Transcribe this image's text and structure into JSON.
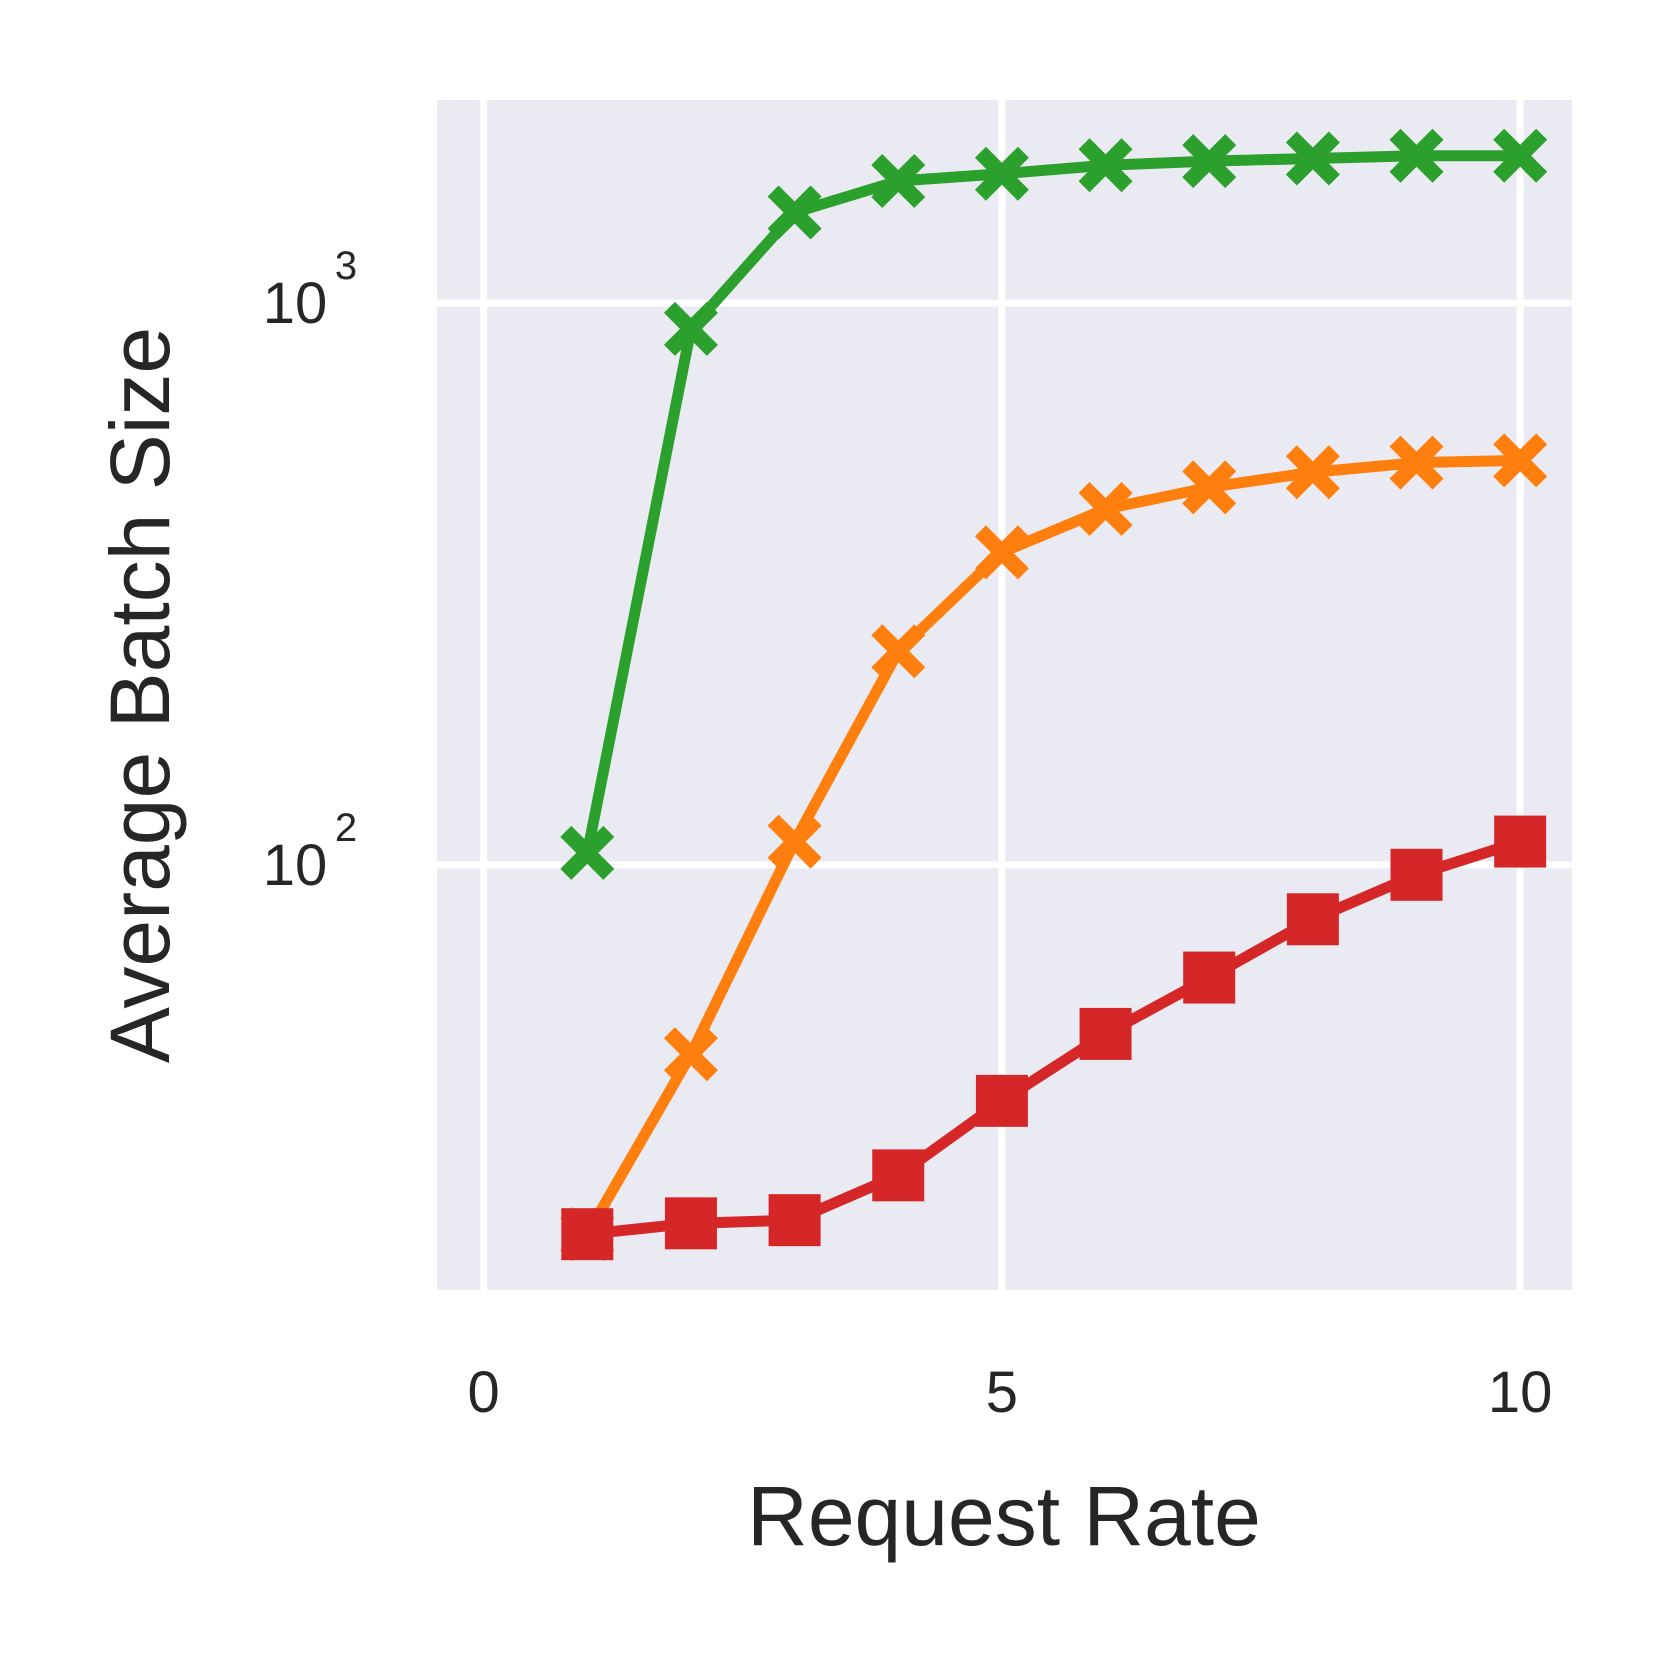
{
  "chart_data": {
    "type": "line",
    "xlabel": "Request Rate",
    "ylabel": "Average Batch Size",
    "x_ticks": [
      "0",
      "5",
      "10"
    ],
    "x_tick_values": [
      0,
      5,
      10
    ],
    "y_ticks": [
      {
        "value": 100,
        "base": "10",
        "exponent": "2"
      },
      {
        "value": 1000,
        "base": "10",
        "exponent": "3"
      }
    ],
    "xlim": [
      -0.45,
      10.5
    ],
    "ylim": [
      17.5,
      2300
    ],
    "yscale": "log",
    "grid": true,
    "legend": "none",
    "x": [
      1,
      2,
      3,
      4,
      5,
      6,
      7,
      8,
      9,
      10
    ],
    "series": [
      {
        "color": "#2ca02c",
        "marker": "X",
        "values": [
          105,
          900,
          1450,
          1650,
          1700,
          1760,
          1790,
          1810,
          1830,
          1830
        ]
      },
      {
        "color": "#ff7f0e",
        "marker": "X",
        "values": [
          22,
          46,
          110,
          240,
          360,
          430,
          470,
          500,
          520,
          525
        ]
      },
      {
        "color": "#d62728",
        "marker": "s",
        "values": [
          22,
          23,
          23.3,
          28,
          38,
          50,
          63,
          80,
          96,
          110
        ]
      }
    ]
  }
}
